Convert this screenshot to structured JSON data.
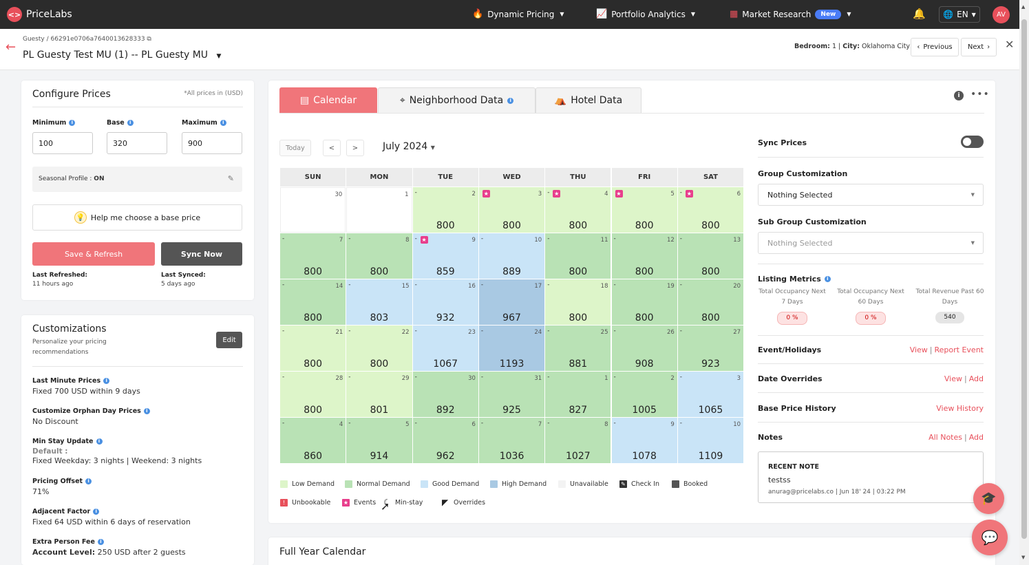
{
  "nav": {
    "logo_mark": "<>",
    "logo_text": "PriceLabs",
    "items": [
      {
        "label": "Dynamic Pricing",
        "icon": "flame-icon",
        "glyph": "🔥"
      },
      {
        "label": "Portfolio Analytics",
        "icon": "chart-line-icon",
        "glyph": "📈"
      },
      {
        "label": "Market Research",
        "icon": "grid-icon",
        "glyph": "▦",
        "badge": "New"
      }
    ],
    "bell_glyph": "🔔",
    "lang_glyph": "🌐",
    "lang": "EN",
    "avatar": "AV"
  },
  "subheader": {
    "breadcrumb": "Guesty / 66291e0706a7640013628333",
    "external_glyph": "⧉",
    "title": "PL Guesty Test MU (1) -- PL Guesty MU",
    "bedroom_label": "Bedroom:",
    "bedroom_value": "1",
    "city_label": "City:",
    "city_value": "Oklahoma City",
    "prev_label": "Previous",
    "next_label": "Next"
  },
  "configure": {
    "title": "Configure Prices",
    "note": "*All prices in (USD)",
    "minimum_label": "Minimum",
    "minimum_value": "100",
    "base_label": "Base",
    "base_value": "320",
    "maximum_label": "Maximum",
    "maximum_value": "900",
    "seasonal_label": "Seasonal Profile :",
    "seasonal_value": "ON",
    "help_label": "Help me choose a base price",
    "save_label": "Save & Refresh",
    "sync_label": "Sync Now",
    "last_refreshed_label": "Last Refreshed:",
    "last_refreshed_value": "11 hours ago",
    "last_synced_label": "Last Synced:",
    "last_synced_value": "5 days ago"
  },
  "customizations": {
    "title": "Customizations",
    "subtitle": "Personalize your pricing recommendations",
    "edit_label": "Edit",
    "items": [
      {
        "label": "Last Minute Prices",
        "value": "Fixed 700 USD within 9 days"
      },
      {
        "label": "Customize Orphan Day Prices",
        "value": "No Discount"
      },
      {
        "label": "Min Stay Update",
        "value_default": "Default :",
        "value": "Fixed Weekday: 3 nights | Weekend: 3 nights"
      },
      {
        "label": "Pricing Offset",
        "value": "71%"
      },
      {
        "label": "Adjacent Factor",
        "value": "Fixed 64 USD within 6 days of reservation"
      },
      {
        "label": "Extra Person Fee",
        "value_bold": "Account Level:",
        "value": "250 USD after 2 guests"
      }
    ]
  },
  "tabs": [
    {
      "label": "Calendar",
      "icon": "calendar-icon",
      "glyph": "▤"
    },
    {
      "label": "Neighborhood Data",
      "icon": "location-pin-icon",
      "glyph": "⌖"
    },
    {
      "label": "Hotel Data",
      "icon": "bed-icon",
      "glyph": "⛺"
    }
  ],
  "calendar": {
    "today_label": "Today",
    "prev_glyph": "<",
    "next_glyph": ">",
    "month": "July 2024",
    "weekdays": [
      "SUN",
      "MON",
      "TUE",
      "WED",
      "THU",
      "FRI",
      "SAT"
    ],
    "colors": {
      "low": "#ddf5c9",
      "normal": "#b9e2b5",
      "good": "#c9e4f7",
      "high": "#a9c9e3",
      "unavailable": "#ffffff"
    },
    "weeks": [
      [
        {
          "day": "30",
          "price": "",
          "level": "unavailable",
          "dash": false,
          "event": false
        },
        {
          "day": "1",
          "price": "",
          "level": "unavailable",
          "dash": false,
          "event": false
        },
        {
          "day": "2",
          "price": "800",
          "level": "low",
          "dash": true,
          "event": false
        },
        {
          "day": "3",
          "price": "800",
          "level": "low",
          "dash": false,
          "event": true
        },
        {
          "day": "4",
          "price": "800",
          "level": "low",
          "dash": true,
          "event": true
        },
        {
          "day": "5",
          "price": "800",
          "level": "low",
          "dash": false,
          "event": true
        },
        {
          "day": "6",
          "price": "800",
          "level": "low",
          "dash": true,
          "event": true
        }
      ],
      [
        {
          "day": "7",
          "price": "800",
          "level": "normal",
          "dash": true,
          "event": false
        },
        {
          "day": "8",
          "price": "800",
          "level": "normal",
          "dash": true,
          "event": false
        },
        {
          "day": "9",
          "price": "859",
          "level": "good",
          "dash": true,
          "event": true
        },
        {
          "day": "10",
          "price": "889",
          "level": "good",
          "dash": true,
          "event": false
        },
        {
          "day": "11",
          "price": "800",
          "level": "normal",
          "dash": true,
          "event": false
        },
        {
          "day": "12",
          "price": "800",
          "level": "normal",
          "dash": true,
          "event": false
        },
        {
          "day": "13",
          "price": "800",
          "level": "normal",
          "dash": true,
          "event": false
        }
      ],
      [
        {
          "day": "14",
          "price": "800",
          "level": "normal",
          "dash": true,
          "event": false
        },
        {
          "day": "15",
          "price": "803",
          "level": "good",
          "dash": true,
          "event": false
        },
        {
          "day": "16",
          "price": "932",
          "level": "good",
          "dash": true,
          "event": false
        },
        {
          "day": "17",
          "price": "967",
          "level": "high",
          "dash": true,
          "event": false
        },
        {
          "day": "18",
          "price": "800",
          "level": "low",
          "dash": true,
          "event": false
        },
        {
          "day": "19",
          "price": "800",
          "level": "normal",
          "dash": true,
          "event": false
        },
        {
          "day": "20",
          "price": "800",
          "level": "normal",
          "dash": true,
          "event": false
        }
      ],
      [
        {
          "day": "21",
          "price": "800",
          "level": "low",
          "dash": true,
          "event": false
        },
        {
          "day": "22",
          "price": "800",
          "level": "low",
          "dash": true,
          "event": false
        },
        {
          "day": "23",
          "price": "1067",
          "level": "good",
          "dash": true,
          "event": false
        },
        {
          "day": "24",
          "price": "1193",
          "level": "high",
          "dash": true,
          "event": false
        },
        {
          "day": "25",
          "price": "881",
          "level": "normal",
          "dash": true,
          "event": false
        },
        {
          "day": "26",
          "price": "908",
          "level": "normal",
          "dash": true,
          "event": false
        },
        {
          "day": "27",
          "price": "923",
          "level": "normal",
          "dash": true,
          "event": false
        }
      ],
      [
        {
          "day": "28",
          "price": "800",
          "level": "low",
          "dash": true,
          "event": false
        },
        {
          "day": "29",
          "price": "801",
          "level": "low",
          "dash": true,
          "event": false
        },
        {
          "day": "30",
          "price": "892",
          "level": "normal",
          "dash": true,
          "event": false
        },
        {
          "day": "31",
          "price": "925",
          "level": "normal",
          "dash": true,
          "event": false
        },
        {
          "day": "1",
          "price": "827",
          "level": "normal",
          "dash": true,
          "event": false
        },
        {
          "day": "2",
          "price": "1005",
          "level": "normal",
          "dash": true,
          "event": false
        },
        {
          "day": "3",
          "price": "1065",
          "level": "good",
          "dash": true,
          "event": false
        }
      ],
      [
        {
          "day": "4",
          "price": "860",
          "level": "normal",
          "dash": true,
          "event": false
        },
        {
          "day": "5",
          "price": "914",
          "level": "normal",
          "dash": true,
          "event": false
        },
        {
          "day": "6",
          "price": "962",
          "level": "normal",
          "dash": true,
          "event": false
        },
        {
          "day": "7",
          "price": "1036",
          "level": "normal",
          "dash": true,
          "event": false
        },
        {
          "day": "8",
          "price": "1027",
          "level": "normal",
          "dash": true,
          "event": false
        },
        {
          "day": "9",
          "price": "1078",
          "level": "good",
          "dash": true,
          "event": false
        },
        {
          "day": "10",
          "price": "1109",
          "level": "good",
          "dash": true,
          "event": false
        }
      ]
    ]
  },
  "legend": [
    {
      "label": "Low Demand",
      "color": "#ddf5c9",
      "icon": "swatch-low"
    },
    {
      "label": "Normal Demand",
      "color": "#b9e2b5",
      "icon": "swatch-normal"
    },
    {
      "label": "Good Demand",
      "color": "#c9e4f7",
      "icon": "swatch-good"
    },
    {
      "label": "High Demand",
      "color": "#a9c9e3",
      "icon": "swatch-high"
    },
    {
      "label": "Unavailable",
      "color": "#f3f3f3",
      "icon": "swatch-unavailable"
    },
    {
      "label": "Check In",
      "color": "#333333",
      "icon": "check-in-icon"
    },
    {
      "label": "Booked",
      "color": "#555555",
      "icon": "booked-icon"
    },
    {
      "label": "Unbookable",
      "color": "#e8505b",
      "icon": "unbookable-icon"
    },
    {
      "label": "Events",
      "color": "#e83e8c",
      "icon": "star-icon"
    },
    {
      "label": "Min-stay",
      "color": "#333333",
      "icon": "moon-icon"
    },
    {
      "label": "Overrides",
      "color": "#222222",
      "icon": "triangle-corner-icon"
    }
  ],
  "right": {
    "sync_prices_label": "Sync Prices",
    "group_label": "Group Customization",
    "group_value": "Nothing Selected",
    "subgroup_label": "Sub Group Customization",
    "subgroup_value": "Nothing Selected",
    "metrics_label": "Listing Metrics",
    "metrics": [
      {
        "label": "Total Occupancy Next 7 Days",
        "value": "0 %",
        "style": "red"
      },
      {
        "label": "Total Occupancy Next 60 Days",
        "value": "0 %",
        "style": "red"
      },
      {
        "label": "Total Revenue Past 60 Days",
        "value": "540",
        "style": "grey"
      }
    ],
    "events_label": "Event/Holidays",
    "events_link1": "View",
    "events_link2": "Report Event",
    "overrides_label": "Date Overrides",
    "overrides_link1": "View",
    "overrides_link2": "Add",
    "history_label": "Base Price History",
    "history_link": "View History",
    "notes_label": "Notes",
    "notes_link1": "All Notes",
    "notes_link2": "Add",
    "note_head": "RECENT NOTE",
    "note_text": "testss",
    "note_meta": "anurag@pricelabs.co | Jun 18' 24 | 03:22 PM"
  },
  "fullyear_title": "Full Year Calendar"
}
